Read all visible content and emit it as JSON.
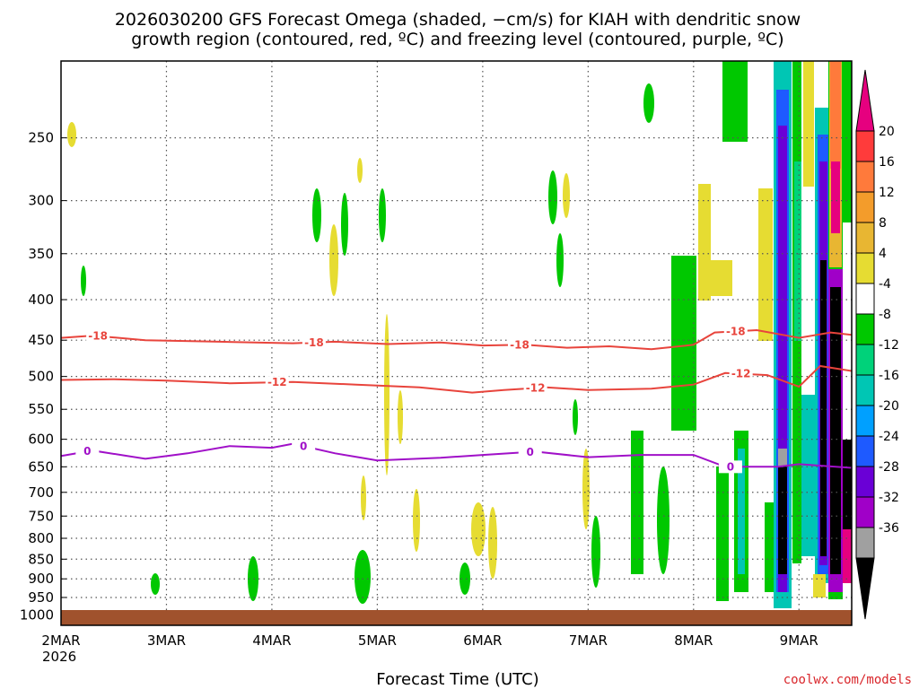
{
  "chart_data": {
    "type": "heatmap",
    "title_lines": [
      "2026030200 GFS Forecast Omega (shaded, −cm/s) for KIAH with dendritic snow",
      "growth region (contoured, red, ºC) and freezing level (contoured, purple, ºC)"
    ],
    "xlabel": "Forecast Time (UTC)",
    "x_ticks": [
      "2MAR",
      "3MAR",
      "4MAR",
      "5MAR",
      "6MAR",
      "7MAR",
      "8MAR",
      "9MAR"
    ],
    "x_year": "2026",
    "xlim_days": [
      0,
      7.5
    ],
    "y_ticks": [
      250,
      300,
      350,
      400,
      450,
      500,
      550,
      600,
      650,
      700,
      750,
      800,
      850,
      900,
      950,
      1000
    ],
    "ylim_hpa": [
      200,
      1030
    ],
    "colorbar": {
      "labels": [
        "20",
        "16",
        "12",
        "8",
        "4",
        "-4",
        "-8",
        "-12",
        "-16",
        "-20",
        "-24",
        "-28",
        "-32",
        "-36"
      ],
      "colors": [
        "#e6007f",
        "#ff3b3b",
        "#ff7a3b",
        "#f39c2b",
        "#e8b632",
        "#e6dc32",
        "#ffffff",
        "#00c800",
        "#00d27a",
        "#00c6b4",
        "#00a0ff",
        "#1e5aff",
        "#6a00d6",
        "#a000c8",
        "#a0a0a0",
        "#000000"
      ]
    },
    "contours": [
      {
        "name": "dendritic-18",
        "color": "#e8443c",
        "label": "-18",
        "points": [
          [
            0,
            447
          ],
          [
            0.3,
            444
          ],
          [
            0.8,
            450
          ],
          [
            1.5,
            452
          ],
          [
            2.2,
            454
          ],
          [
            2.6,
            452
          ],
          [
            3.1,
            455
          ],
          [
            3.6,
            453
          ],
          [
            4.0,
            457
          ],
          [
            4.4,
            456
          ],
          [
            4.8,
            460
          ],
          [
            5.2,
            458
          ],
          [
            5.6,
            462
          ],
          [
            6.0,
            456
          ],
          [
            6.2,
            440
          ],
          [
            6.6,
            437
          ],
          [
            7.0,
            447
          ],
          [
            7.3,
            440
          ],
          [
            7.5,
            443
          ]
        ],
        "label_days": [
          0.35,
          2.4,
          4.35,
          6.4
        ]
      },
      {
        "name": "dendritic-12",
        "color": "#e8443c",
        "label": "-12",
        "points": [
          [
            0,
            505
          ],
          [
            0.5,
            504
          ],
          [
            1.0,
            506
          ],
          [
            1.6,
            510
          ],
          [
            2.2,
            508
          ],
          [
            2.8,
            512
          ],
          [
            3.4,
            516
          ],
          [
            3.9,
            524
          ],
          [
            4.2,
            520
          ],
          [
            4.6,
            516
          ],
          [
            5.0,
            520
          ],
          [
            5.6,
            518
          ],
          [
            6.0,
            512
          ],
          [
            6.3,
            495
          ],
          [
            6.7,
            498
          ],
          [
            7.0,
            515
          ],
          [
            7.2,
            485
          ],
          [
            7.5,
            492
          ]
        ],
        "label_days": [
          2.05,
          4.5,
          6.45
        ]
      },
      {
        "name": "freezing-0",
        "color": "#a010c8",
        "label": "0",
        "points": [
          [
            0,
            630
          ],
          [
            0.3,
            620
          ],
          [
            0.8,
            635
          ],
          [
            1.2,
            625
          ],
          [
            1.6,
            612
          ],
          [
            2.0,
            615
          ],
          [
            2.2,
            608
          ],
          [
            2.6,
            625
          ],
          [
            3.0,
            638
          ],
          [
            3.6,
            633
          ],
          [
            4.0,
            628
          ],
          [
            4.5,
            622
          ],
          [
            5.0,
            632
          ],
          [
            5.5,
            628
          ],
          [
            6.0,
            628
          ],
          [
            6.3,
            650
          ],
          [
            6.8,
            650
          ],
          [
            7.0,
            645
          ],
          [
            7.5,
            652
          ]
        ],
        "label_days": [
          0.25,
          2.3,
          4.45,
          6.35
        ]
      }
    ]
  },
  "credit": "coolwx.com/models"
}
